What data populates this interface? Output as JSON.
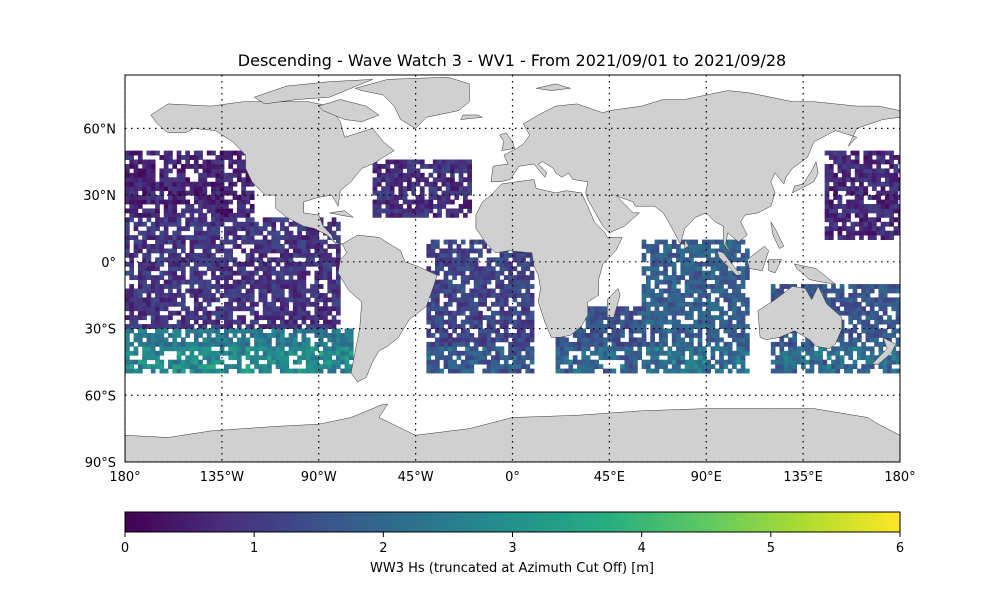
{
  "map": {
    "title": "Descending - Wave Watch 3 - WV1 - From 2021/09/01 to 2021/09/28",
    "projection": "plate-carree",
    "lat_ticks": [
      "60°N",
      "30°N",
      "0°",
      "30°S",
      "60°S",
      "90°S"
    ],
    "lat_values": [
      60,
      30,
      0,
      -30,
      -60,
      -90
    ],
    "lon_ticks": [
      "180°",
      "135°W",
      "90°W",
      "45°W",
      "0°",
      "45°E",
      "90°E",
      "135°E",
      "180°"
    ],
    "lon_values": [
      -180,
      -135,
      -90,
      -45,
      0,
      45,
      90,
      135,
      180
    ],
    "land_color": "#d0d0d0",
    "coast_color": "#333333",
    "gridlines": "dotted"
  },
  "colorbar": {
    "label": "WW3 Hs (truncated at Azimuth Cut Off) [m]",
    "ticks": [
      "0",
      "1",
      "2",
      "3",
      "4",
      "5",
      "6"
    ],
    "vmin": 0,
    "vmax": 6,
    "colormap": "viridis"
  },
  "chart_data": {
    "type": "heatmap",
    "variable": "significant wave height (m)",
    "value_range": [
      0,
      6
    ],
    "regions": [
      {
        "lon": [
          -180,
          -120
        ],
        "lat": [
          20,
          50
        ],
        "mean_hs": 0.6
      },
      {
        "lon": [
          -180,
          -80
        ],
        "lat": [
          -30,
          20
        ],
        "mean_hs": 0.9
      },
      {
        "lon": [
          -180,
          -75
        ],
        "lat": [
          -50,
          -30
        ],
        "mean_hs": 2.4
      },
      {
        "lon": [
          -65,
          -20
        ],
        "lat": [
          20,
          45
        ],
        "mean_hs": 0.8
      },
      {
        "lon": [
          -40,
          10
        ],
        "lat": [
          -50,
          10
        ],
        "mean_hs": 1.2
      },
      {
        "lon": [
          20,
          60
        ],
        "lat": [
          -50,
          -20
        ],
        "mean_hs": 1.5
      },
      {
        "lon": [
          60,
          110
        ],
        "lat": [
          -50,
          10
        ],
        "mean_hs": 1.8
      },
      {
        "lon": [
          120,
          180
        ],
        "lat": [
          -50,
          -10
        ],
        "mean_hs": 1.6
      },
      {
        "lon": [
          145,
          180
        ],
        "lat": [
          10,
          50
        ],
        "mean_hs": 0.7
      }
    ]
  }
}
